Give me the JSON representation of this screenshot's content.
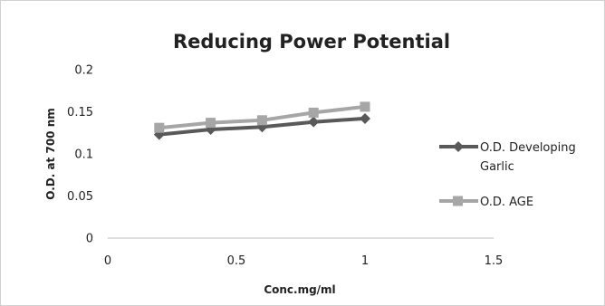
{
  "chart_data": {
    "type": "line",
    "title": "Reducing Power Potential",
    "xlabel": "Conc.mg/ml",
    "ylabel": "O.D. at 700 nm",
    "xlim": [
      0,
      1.5
    ],
    "ylim": [
      0,
      0.2
    ],
    "xticks": [
      0,
      0.5,
      1,
      1.5
    ],
    "xtick_labels": [
      "0",
      "0.5",
      "1",
      "1.5"
    ],
    "yticks": [
      0,
      0.05,
      0.1,
      0.15,
      0.2
    ],
    "ytick_labels": [
      "0",
      "0.05",
      "0.1",
      "0.15",
      "0.2"
    ],
    "x": [
      0.2,
      0.4,
      0.6,
      0.8,
      1.0
    ],
    "grid": false,
    "legend_position": "right",
    "series": [
      {
        "name": "O.D. Developing Garlic",
        "legend_lines": [
          "O.D. Developing",
          "Garlic"
        ],
        "values": [
          0.123,
          0.129,
          0.132,
          0.138,
          0.142
        ],
        "color": "#595959",
        "marker": "diamond"
      },
      {
        "name": "O.D. AGE",
        "legend_lines": [
          "O.D. AGE"
        ],
        "values": [
          0.131,
          0.137,
          0.14,
          0.149,
          0.156
        ],
        "color": "#a6a6a6",
        "marker": "square"
      }
    ]
  }
}
